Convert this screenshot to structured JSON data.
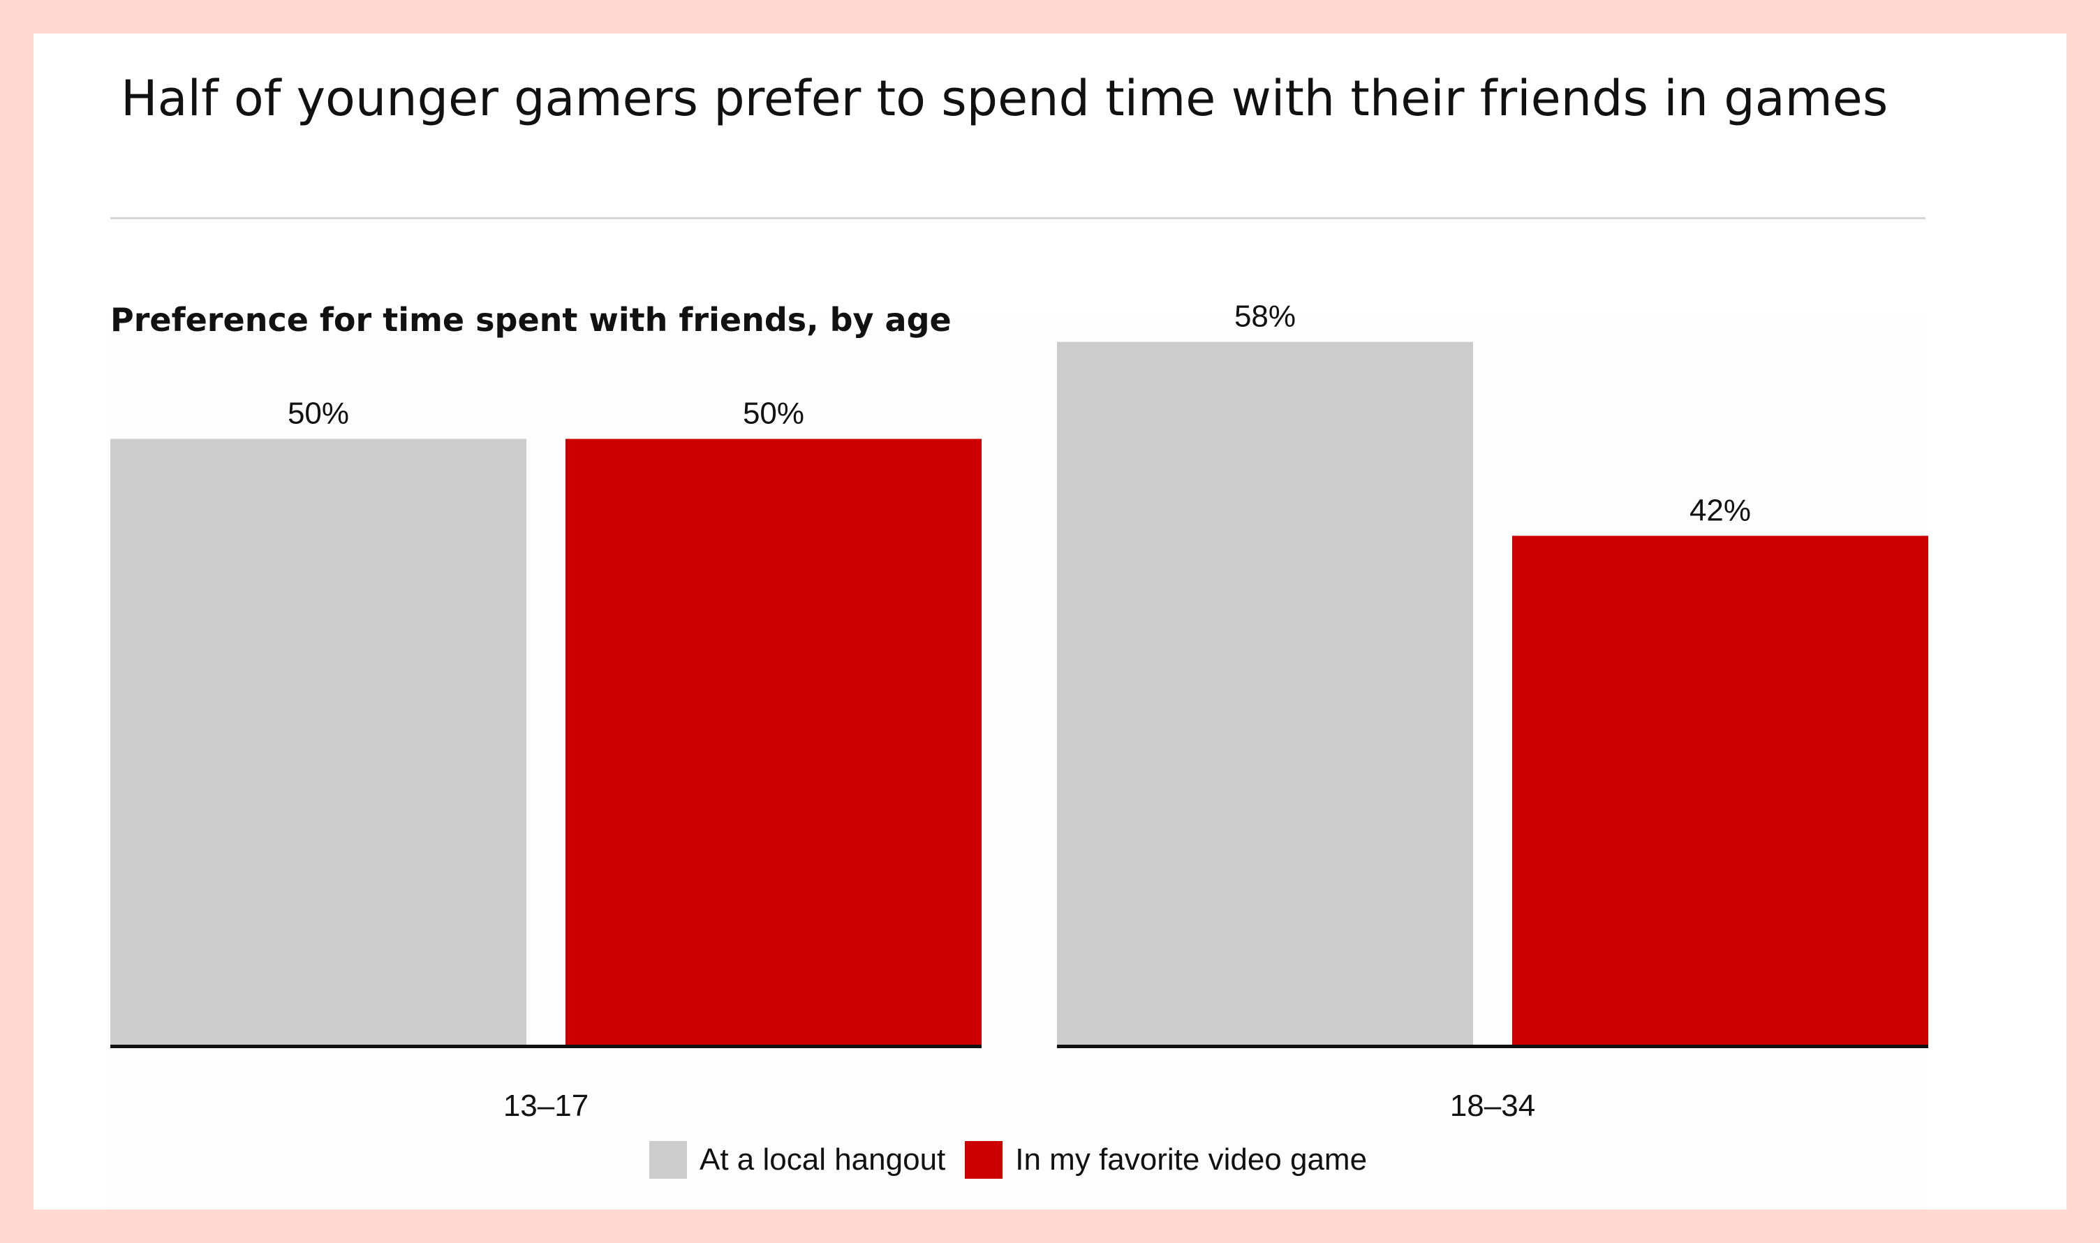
{
  "headline": "Half of younger gamers prefer to spend time with their friends in games",
  "chart_data": {
    "type": "bar",
    "title": "Preference for time spent with friends, by age",
    "categories": [
      "13–17",
      "18–34"
    ],
    "series": [
      {
        "name": "At a local hangout",
        "values": [
          50,
          58
        ],
        "labels": [
          "50%",
          "58%"
        ],
        "color": "#cccccc"
      },
      {
        "name": "In my favorite video game",
        "values": [
          50,
          42
        ],
        "labels": [
          "50%",
          "42%"
        ],
        "color": "#cc0000"
      }
    ],
    "xlabel": "",
    "ylabel": "",
    "ylim": [
      0,
      100
    ],
    "grid": false,
    "legend": "bottom-center"
  }
}
